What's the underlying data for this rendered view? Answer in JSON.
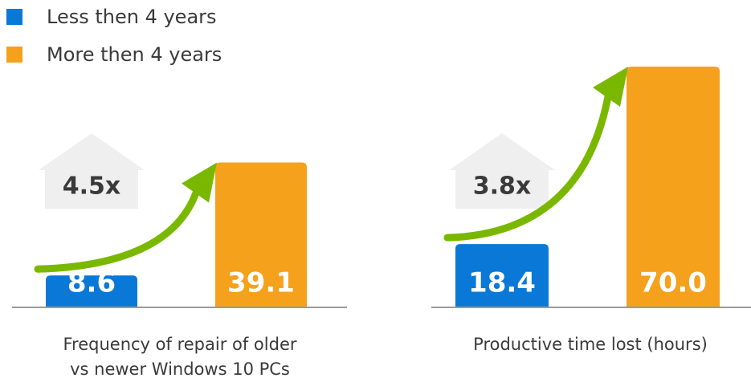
{
  "chart_data": [
    {
      "type": "bar",
      "x_label": "Frequency of repair of older vs newer Windows 10 PCs",
      "annotation": "4.5x",
      "ylim": [
        0,
        65
      ],
      "series": [
        {
          "name": "Less then 4 years",
          "color": "#0a78d7",
          "values": [
            8.6
          ]
        },
        {
          "name": "More then 4 years",
          "color": "#f5a11c",
          "values": [
            39.1
          ]
        }
      ]
    },
    {
      "type": "bar",
      "x_label": "Productive time lost (hours)",
      "annotation": "3.8x",
      "ylim": [
        0,
        70
      ],
      "series": [
        {
          "name": "Less then 4 years",
          "color": "#0a78d7",
          "values": [
            18.4
          ]
        },
        {
          "name": "More then 4 years",
          "color": "#f5a11c",
          "values": [
            70
          ],
          "value_labels": [
            "70.0"
          ]
        }
      ]
    }
  ]
}
